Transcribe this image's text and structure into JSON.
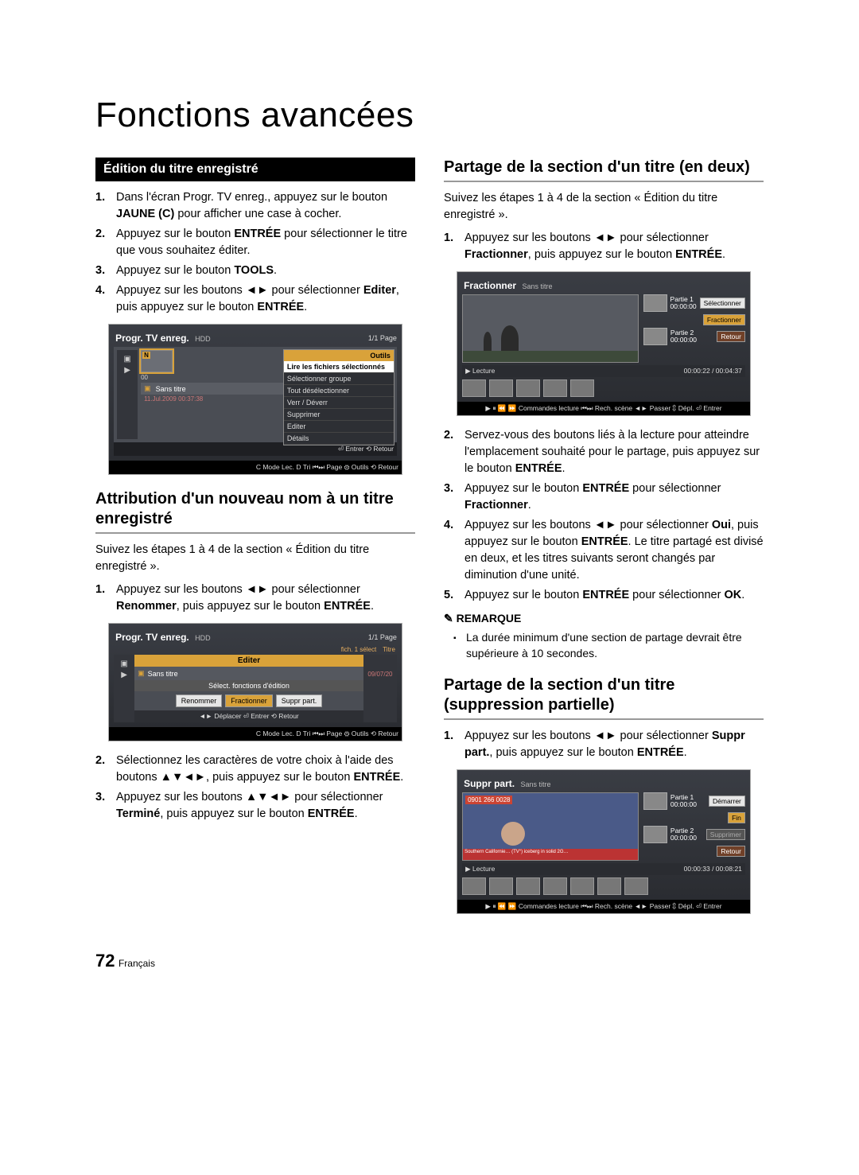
{
  "mainTitle": "Fonctions avancées",
  "pageNumber": "72",
  "language": "Français",
  "left": {
    "sectionBar": "Édition du titre enregistré",
    "steps1": [
      "Dans l'écran Progr. TV enreg., appuyez sur le bouton <b>JAUNE (C)</b> pour afficher une case à cocher.",
      "Appuyez sur le bouton <b>ENTRÉE</b> pour sélectionner le titre que vous souhaitez éditer.",
      "Appuyez sur le bouton <b>TOOLS</b>.",
      "Appuyez sur les boutons ◄► pour sélectionner <b>Editer</b>, puis appuyez sur le bouton <b>ENTRÉE</b>."
    ],
    "sub1": "Attribution d'un nouveau nom à un titre enregistré",
    "intro1": "Suivez les étapes 1 à 4 de la section « Édition du titre enregistré ».",
    "steps2": [
      "Appuyez sur les boutons ◄► pour sélectionner <b>Renommer</b>, puis appuyez sur le bouton <b>ENTRÉE</b>."
    ],
    "steps3": [
      "Sélectionnez les caractères de votre choix à l'aide des boutons ▲▼◄►, puis appuyez sur le bouton <b>ENTRÉE</b>.",
      "Appuyez sur les boutons ▲▼◄► pour sélectionner <b>Terminé</b>, puis appuyez sur le bouton <b>ENTRÉE</b>."
    ],
    "shot1": {
      "title": "Progr. TV enreg.",
      "titleSub": "HDD",
      "pageInd": "1/1 Page",
      "menuHeader": "Outils",
      "menuItems": [
        "Lire les fichiers sélectionnés",
        "Sélectionner groupe",
        "Tout désélectionner",
        "Verr / Déverr",
        "Supprimer",
        "Editer",
        "Détails"
      ],
      "highlight": 0,
      "thumbSel": "N",
      "thumbSub": "00",
      "rowLabel": "Sans titre",
      "rowMeta": "11.Jul.2009 00:37:38",
      "footerRight": "⏎ Entrer ⟲ Retour",
      "footerBottom": "C Mode Lec.  D Tri  ⏮⏭ Page  ⚙ Outils  ⟲ Retour"
    },
    "shot2": {
      "title": "Progr. TV enreg.",
      "titleSub": "HDD",
      "pageInd": "1/1 Page",
      "cornerLabel": "fich. 1 sélect",
      "cornerTitle": "Titre",
      "editBar": "Editer",
      "rowLabel": "Sans titre",
      "subBar": "Sélect. fonctions d'édition",
      "side": "09/07/20",
      "buttons": [
        "Renommer",
        "Fractionner",
        "Suppr part."
      ],
      "navRow": "◄► Déplacer  ⏎ Entrer  ⟲ Retour",
      "footerBottom": "C Mode Lec.  D Tri  ⏮⏭ Page  ⚙ Outils  ⟲ Retour"
    }
  },
  "right": {
    "sub1": "Partage de la section d'un titre (en deux)",
    "intro1": "Suivez les étapes 1 à 4 de la section « Édition du titre enregistré ».",
    "steps1": [
      "Appuyez sur les boutons ◄► pour sélectionner <b>Fractionner</b>, puis appuyez sur le bouton <b>ENTRÉE</b>."
    ],
    "steps2": [
      "Servez-vous des boutons liés à la lecture pour atteindre l'emplacement souhaité pour le partage, puis appuyez sur le bouton <b>ENTRÉE</b>.",
      "Appuyez sur le bouton <b>ENTRÉE</b> pour sélectionner <b>Fractionner</b>.",
      "Appuyez sur les boutons ◄► pour sélectionner <b>Oui</b>, puis appuyez sur le bouton <b>ENTRÉE</b>. Le titre partagé est divisé en deux, et les titres suivants seront changés par diminution d'une unité.",
      "Appuyez sur le bouton <b>ENTRÉE</b> pour sélectionner <b>OK</b>."
    ],
    "noteHead": "✎ REMARQUE",
    "noteBody": "La durée minimum d'une section de partage devrait être supérieure à 10 secondes.",
    "sub2": "Partage de la section d'un titre (suppression partielle)",
    "steps3": [
      "Appuyez sur les boutons ◄► pour sélectionner <b>Suppr part.</b>, puis appuyez sur le bouton <b>ENTRÉE</b>."
    ],
    "shotFrac": {
      "title": "Fractionner",
      "titleSub": "Sans titre",
      "p1": "Partie 1",
      "p1t": "00:00:00",
      "p2": "Partie 2",
      "p2t": "00:00:00",
      "btn1": "Sélectionner",
      "btn2": "Fractionner",
      "btn3": "Retour",
      "lecture": "▶ Lecture",
      "time": "00:00:22 / 00:04:37",
      "footer": "▶ ⏸ ⏪ ⏩ Commandes lecture  ⏮⏭ Rech. scène  ◄► Passer  ⇕ Dépl.  ⏎ Entrer"
    },
    "shotSupp": {
      "title": "Suppr part.",
      "titleSub": "Sans titre",
      "tel": "0901 266 0028",
      "p1": "Partie 1",
      "p1t": "00:00:00",
      "p2": "Partie 2",
      "p2t": "00:00:00",
      "btn1": "Démarrer",
      "btn2": "Fin",
      "btn3": "Supprimer",
      "btn4": "Retour",
      "lecture": "▶ Lecture",
      "time": "00:00:33 / 00:08:21",
      "footer": "▶ ⏸ ⏪ ⏩ Commandes lecture  ⏮⏭ Rech. scène  ◄► Passer  ⇕ Dépl.  ⏎ Entrer"
    }
  }
}
